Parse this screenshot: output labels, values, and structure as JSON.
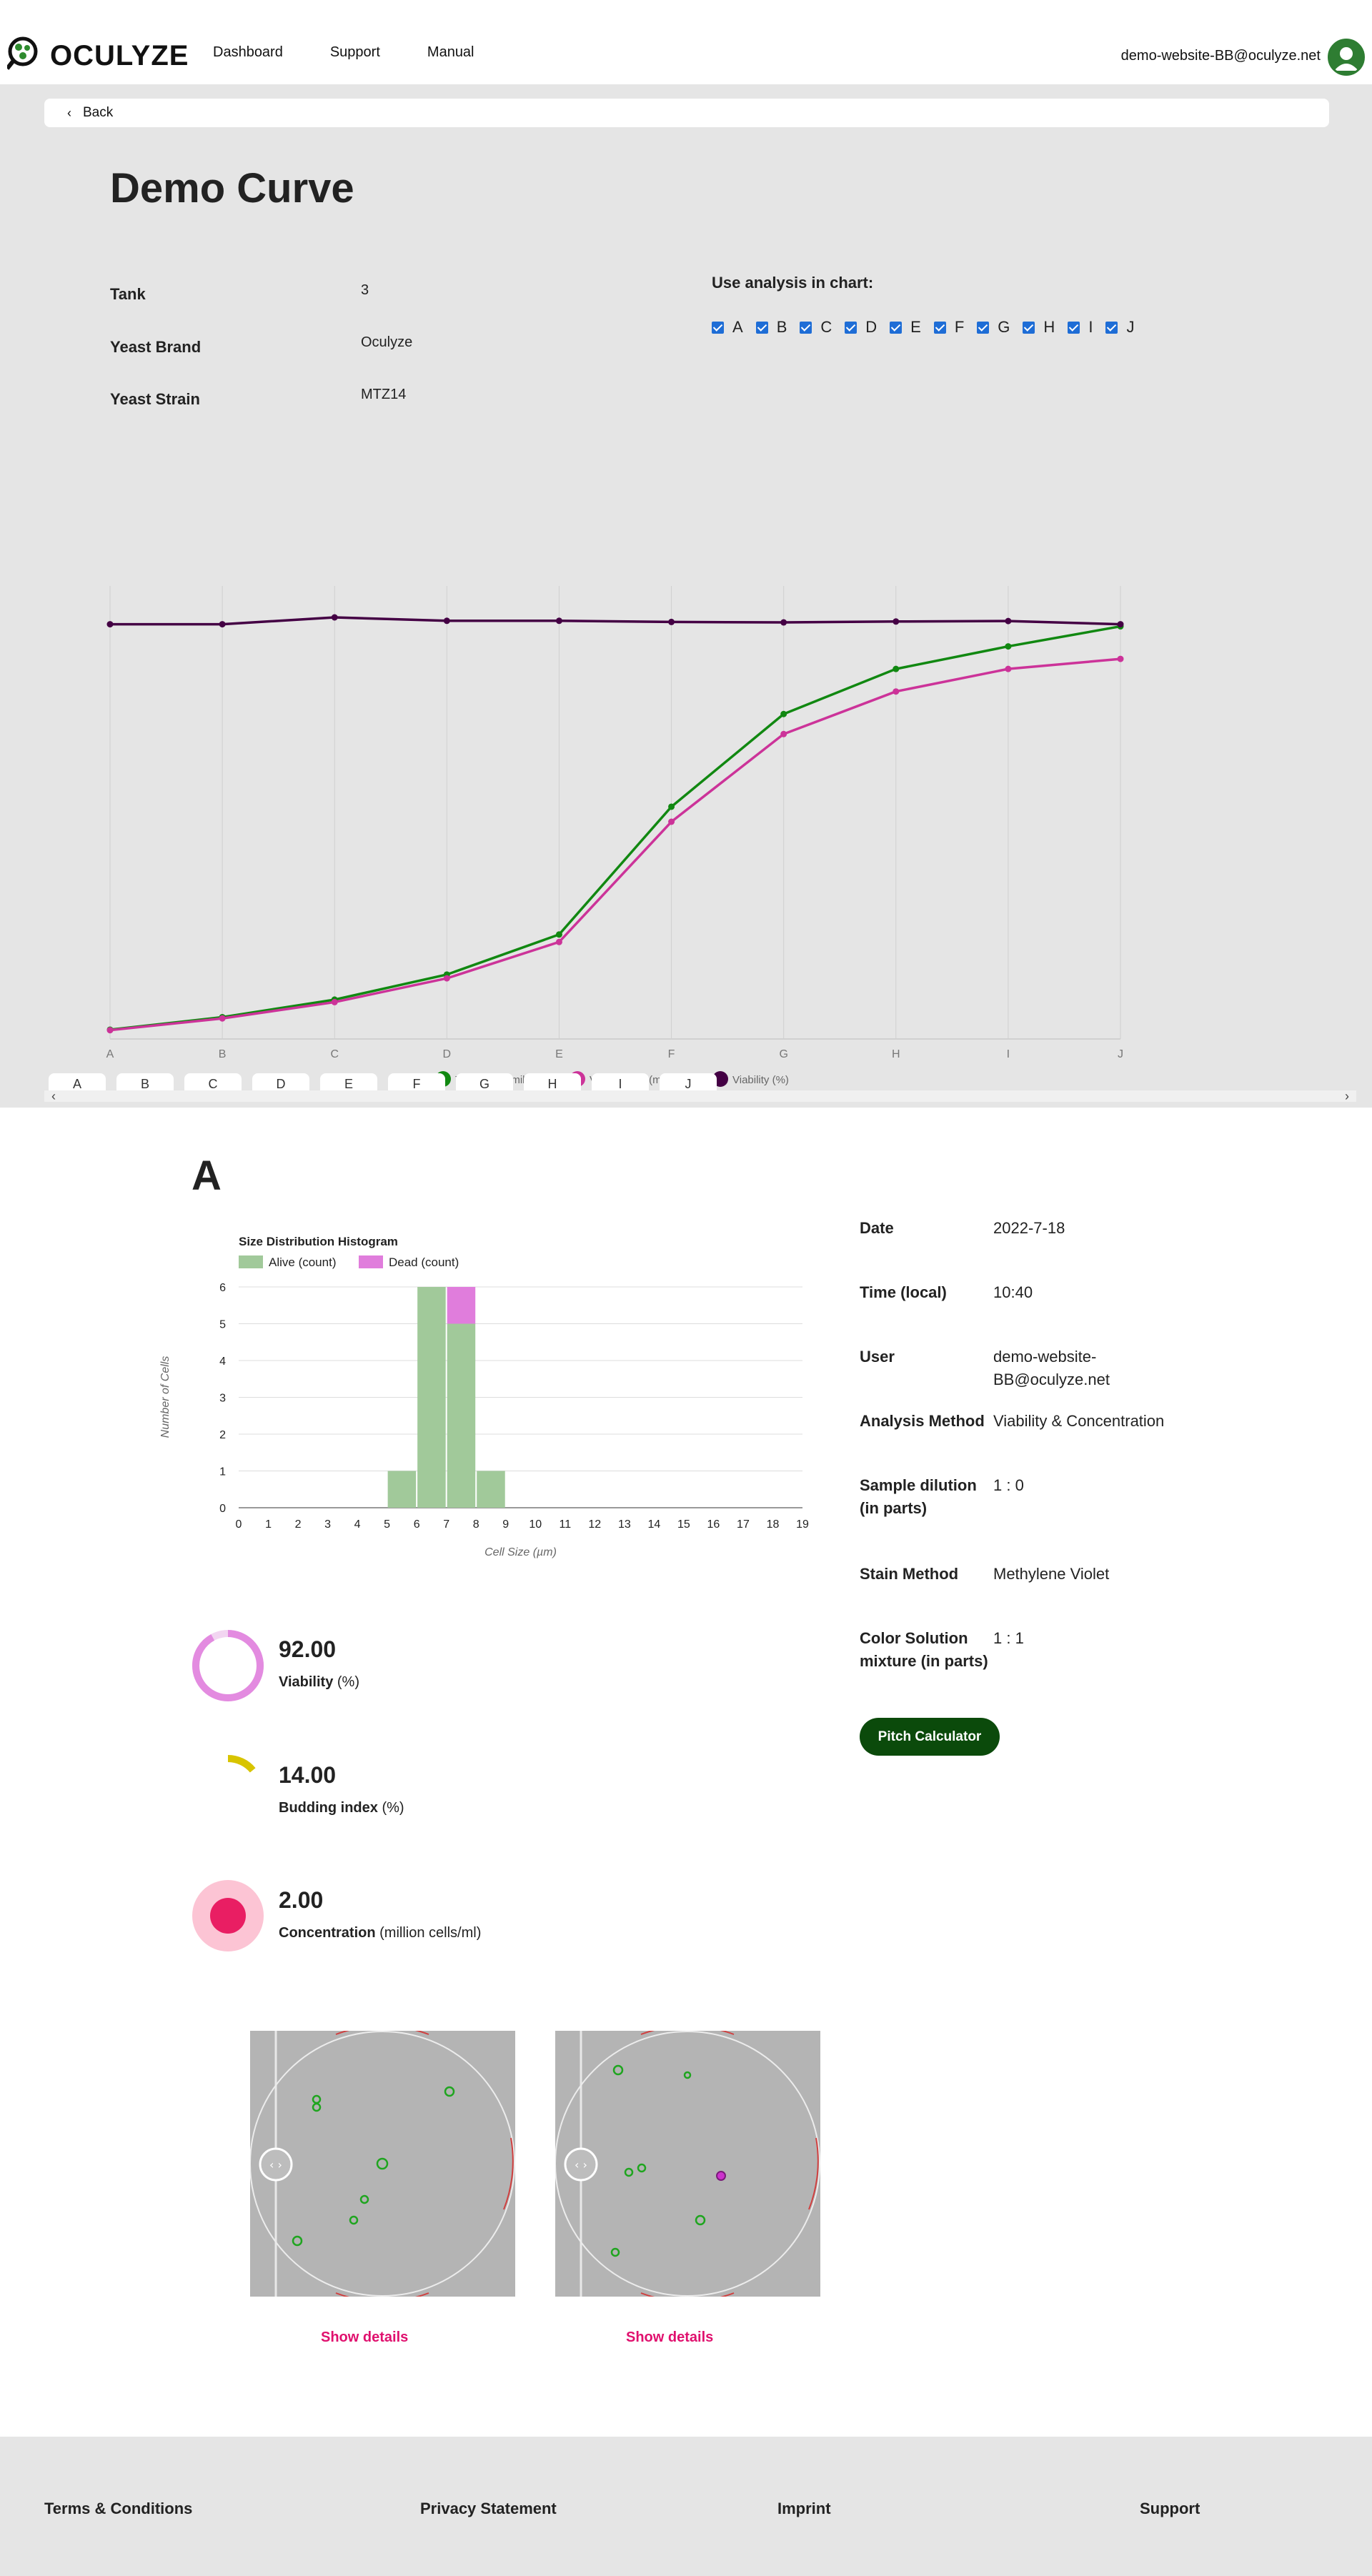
{
  "header": {
    "logo_text": "OCULYZE",
    "nav": [
      "Dashboard",
      "Support",
      "Manual"
    ],
    "user_email": "demo-website-BB@oculyze.net"
  },
  "back_label": "Back",
  "page_title": "Demo Curve",
  "info": {
    "tank_label": "Tank",
    "tank_value": "3",
    "brand_label": "Yeast Brand",
    "brand_value": "Oculyze",
    "strain_label": "Yeast Strain",
    "strain_value": "MTZ14"
  },
  "use_analysis": {
    "title": "Use analysis in chart:",
    "items": [
      "A",
      "B",
      "C",
      "D",
      "E",
      "F",
      "G",
      "H",
      "I",
      "J"
    ]
  },
  "chart_data": [
    {
      "type": "line",
      "categories": [
        "A",
        "B",
        "C",
        "D",
        "E",
        "F",
        "G",
        "H",
        "I",
        "J"
      ],
      "series": [
        {
          "name": "Total Cells (million/ml)",
          "color": "#118811",
          "values": [
            2.0,
            7.0,
            14.0,
            24.0,
            40.0,
            91.0,
            128.0,
            146.0,
            155.0,
            163.0
          ]
        },
        {
          "name": "Viable Cells (million/ml)",
          "color": "#cc3399",
          "values": [
            1.8,
            6.5,
            13.0,
            22.5,
            37.0,
            85.0,
            120.0,
            137.0,
            146.0,
            150.0
          ]
        },
        {
          "name": "Viability (%)",
          "color": "#440044",
          "values": [
            92.0,
            92.0,
            95.0,
            93.5,
            93.5,
            93.0,
            92.8,
            93.2,
            93.4,
            92.0
          ]
        }
      ],
      "legend": "bottom"
    },
    {
      "type": "bar",
      "title": "Size Distribution Histogram",
      "xlabel": "Cell Size (µm)",
      "ylabel": "Number of Cells",
      "categories": [
        "0",
        "1",
        "2",
        "3",
        "4",
        "5",
        "6",
        "7",
        "8",
        "9",
        "10",
        "11",
        "12",
        "13",
        "14",
        "15",
        "16",
        "17",
        "18",
        "19"
      ],
      "series": [
        {
          "name": "Alive (count)",
          "color": "#a1c99a",
          "values": [
            0,
            0,
            0,
            0,
            0,
            1,
            6,
            5,
            1,
            0,
            0,
            0,
            0,
            0,
            0,
            0,
            0,
            0,
            0,
            0
          ]
        },
        {
          "name": "Dead (count)",
          "color": "#e07ddc",
          "values": [
            0,
            0,
            0,
            0,
            0,
            0,
            0,
            1,
            0,
            0,
            0,
            0,
            0,
            0,
            0,
            0,
            0,
            0,
            0,
            0
          ]
        }
      ],
      "yticks": [
        "0",
        "1",
        "2",
        "3",
        "4",
        "5",
        "6"
      ],
      "ylim": [
        0,
        6
      ],
      "stacked": true,
      "legend": "top-left"
    }
  ],
  "tabs": [
    "A",
    "B",
    "C",
    "D",
    "E",
    "F",
    "G",
    "H",
    "I",
    "J"
  ],
  "detail": {
    "letter": "A",
    "fields": [
      {
        "label": "Date",
        "value": "2022-7-18"
      },
      {
        "label": "Time (local)",
        "value": "10:40"
      },
      {
        "label": "User",
        "value": "demo-website-BB@oculyze.net"
      },
      {
        "label": "Analysis Method",
        "value": "Viability & Concentration"
      },
      {
        "label": "Sample dilution (in parts)",
        "value": "1 : 0"
      },
      {
        "label": "Stain Method",
        "value": "Methylene Violet"
      },
      {
        "label": "Color Solution mixture (in parts)",
        "value": "1 : 1"
      }
    ],
    "pitch_label": "Pitch Calculator"
  },
  "metrics": {
    "viability": {
      "value": "92.00",
      "label": "Viability",
      "unit": "(%)",
      "fraction": 0.92,
      "color": "#e38be0"
    },
    "budding": {
      "value": "14.00",
      "label": "Budding index",
      "unit": "(%)",
      "fraction": 0.14,
      "color": "#d8c400"
    },
    "concentration": {
      "value": "2.00",
      "label": "Concentration",
      "unit": "(million cells/ml)",
      "color": "#e91e63"
    }
  },
  "images": {
    "show_details": "Show details"
  },
  "footer": [
    "Terms & Conditions",
    "Privacy Statement",
    "Imprint",
    "Support"
  ]
}
